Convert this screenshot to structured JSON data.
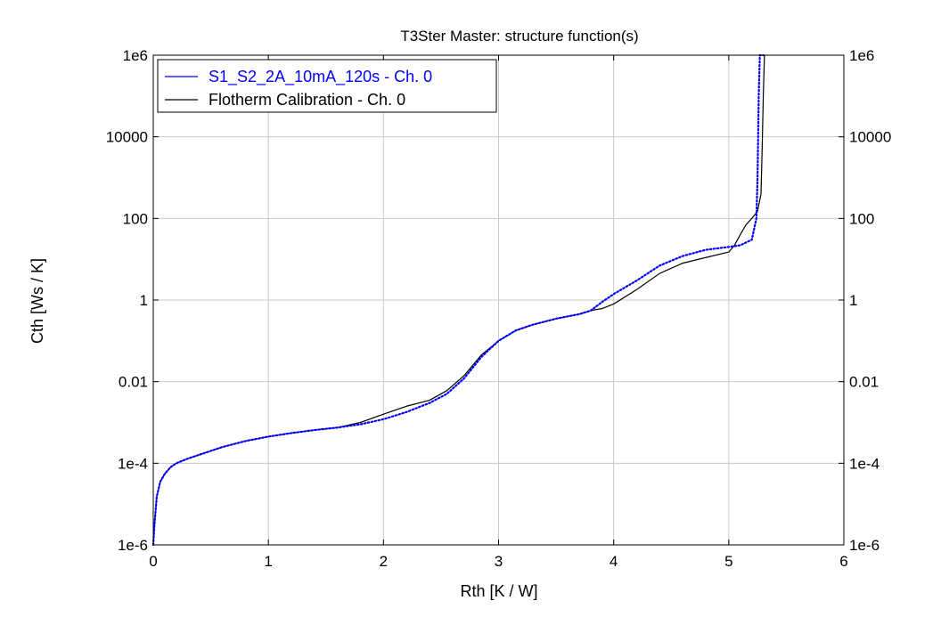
{
  "chart_data": {
    "type": "line",
    "title": "T3Ster Master: structure function(s)",
    "xlabel": "Rth  [K / W]",
    "ylabel": "Cth  [Ws / K]",
    "xlim": [
      0,
      6
    ],
    "ylim": [
      1e-06,
      1000000.0
    ],
    "y_scale": "log",
    "grid": true,
    "legend_position": "top-left",
    "x_ticks": [
      0,
      1,
      2,
      3,
      4,
      5,
      6
    ],
    "x_tick_labels": [
      "0",
      "1",
      "2",
      "3",
      "4",
      "5",
      "6"
    ],
    "y_ticks": [
      1e-06,
      0.0001,
      0.01,
      1,
      100,
      10000,
      1000000.0
    ],
    "y_tick_labels": [
      "1e-6",
      "1e-4",
      "0.01",
      "1",
      "100",
      "10000",
      "1e6"
    ],
    "series": [
      {
        "name": "S1_S2_2A_10mA_120s - Ch. 0",
        "color": "#0000ff",
        "style": "dotted-markers",
        "x": [
          0.0,
          0.01,
          0.03,
          0.06,
          0.1,
          0.15,
          0.2,
          0.3,
          0.45,
          0.6,
          0.8,
          1.0,
          1.2,
          1.4,
          1.6,
          1.8,
          2.0,
          2.2,
          2.4,
          2.55,
          2.7,
          2.85,
          3.0,
          3.15,
          3.3,
          3.5,
          3.7,
          3.8,
          3.9,
          4.0,
          4.2,
          4.4,
          4.6,
          4.8,
          5.0,
          5.1,
          5.2,
          5.24,
          5.25,
          5.26,
          5.27,
          5.28,
          5.3
        ],
        "y": [
          1e-06,
          3e-06,
          1.5e-05,
          3.5e-05,
          5.5e-05,
          8e-05,
          0.0001,
          0.00013,
          0.00018,
          0.00025,
          0.00035,
          0.00045,
          0.00055,
          0.00065,
          0.00075,
          0.0009,
          0.0012,
          0.0018,
          0.003,
          0.005,
          0.012,
          0.04,
          0.1,
          0.18,
          0.25,
          0.35,
          0.45,
          0.55,
          0.9,
          1.4,
          3.0,
          7.0,
          12.0,
          17.0,
          20.0,
          22.0,
          30.0,
          100.0,
          1000.0,
          100000.0,
          1000000.0,
          1000000.0,
          1000000.0
        ]
      },
      {
        "name": "Flotherm Calibration - Ch. 0",
        "color": "#000000",
        "style": "solid",
        "x": [
          0.0,
          0.01,
          0.03,
          0.06,
          0.1,
          0.15,
          0.2,
          0.3,
          0.45,
          0.6,
          0.8,
          1.0,
          1.2,
          1.4,
          1.6,
          1.8,
          2.0,
          2.2,
          2.4,
          2.55,
          2.7,
          2.85,
          3.0,
          3.15,
          3.3,
          3.5,
          3.7,
          3.8,
          3.9,
          4.0,
          4.2,
          4.4,
          4.6,
          4.8,
          5.0,
          5.05,
          5.1,
          5.15,
          5.2,
          5.25,
          5.28,
          5.29,
          5.3,
          5.31,
          5.32
        ],
        "y": [
          1e-06,
          3e-06,
          1.5e-05,
          3.5e-05,
          5.5e-05,
          8e-05,
          0.0001,
          0.00013,
          0.00018,
          0.00025,
          0.00035,
          0.00045,
          0.00055,
          0.00065,
          0.00075,
          0.001,
          0.0016,
          0.0025,
          0.0035,
          0.006,
          0.014,
          0.045,
          0.1,
          0.18,
          0.25,
          0.35,
          0.45,
          0.55,
          0.62,
          0.8,
          1.8,
          4.5,
          8.0,
          11.0,
          15.0,
          22.0,
          40.0,
          70.0,
          100.0,
          150.0,
          400.0,
          5000.0,
          100000.0,
          1000000.0,
          1000000.0
        ]
      }
    ]
  }
}
